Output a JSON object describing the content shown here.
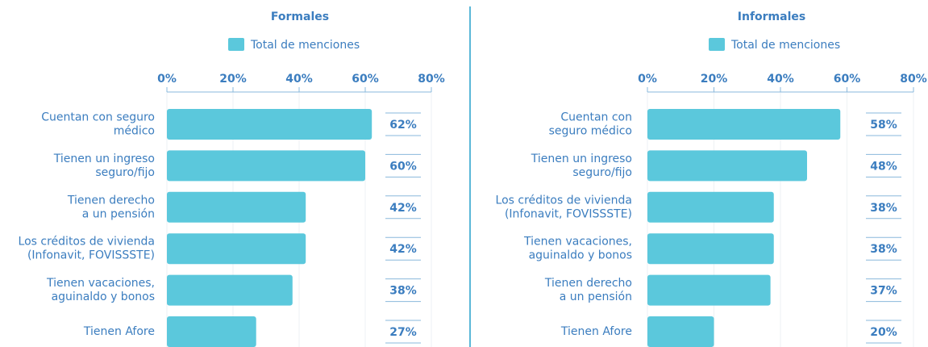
{
  "chart_data": [
    {
      "type": "bar",
      "orientation": "horizontal",
      "title": "Formales",
      "categories": [
        [
          "Cuentan con seguro",
          "médico"
        ],
        [
          "Tienen un ingreso",
          "seguro/fijo"
        ],
        [
          "Tienen derecho",
          "a un pensión"
        ],
        [
          "Los créditos de vivienda",
          "(Infonavit, FOVISSSTE)"
        ],
        [
          "Tienen vacaciones,",
          "aguinaldo y bonos"
        ],
        [
          "Tienen Afore"
        ]
      ],
      "series": [
        {
          "name": "Total de menciones",
          "color": "#5bc8dc",
          "values": [
            62,
            60,
            42,
            42,
            38,
            27
          ],
          "value_labels": [
            "62%",
            "60%",
            "42%",
            "42%",
            "38%",
            "27%"
          ]
        }
      ],
      "xlim": [
        0,
        80
      ],
      "xticks": [
        {
          "value": 0,
          "label": "0%"
        },
        {
          "value": 20,
          "label": "20%"
        },
        {
          "value": 40,
          "label": "40%"
        },
        {
          "value": 60,
          "label": "60%"
        },
        {
          "value": 80,
          "label": "80%"
        }
      ],
      "grid": true
    },
    {
      "type": "bar",
      "orientation": "horizontal",
      "title": "Informales",
      "categories": [
        [
          "Cuentan con",
          "seguro médico"
        ],
        [
          "Tienen un ingreso",
          "seguro/fijo"
        ],
        [
          "Los créditos de vivienda",
          "(Infonavit, FOVISSSTE)"
        ],
        [
          "Tienen vacaciones,",
          "aguinaldo y bonos"
        ],
        [
          "Tienen derecho",
          "a un pensión"
        ],
        [
          "Tienen Afore"
        ]
      ],
      "series": [
        {
          "name": "Total de menciones",
          "color": "#5bc8dc",
          "values": [
            58,
            48,
            38,
            38,
            37,
            20
          ],
          "value_labels": [
            "58%",
            "48%",
            "38%",
            "38%",
            "37%",
            "20%"
          ]
        }
      ],
      "xlim": [
        0,
        80
      ],
      "xticks": [
        {
          "value": 0,
          "label": "0%"
        },
        {
          "value": 20,
          "label": "20%"
        },
        {
          "value": 40,
          "label": "40%"
        },
        {
          "value": 60,
          "label": "60%"
        },
        {
          "value": 80,
          "label": "80%"
        }
      ],
      "grid": true
    }
  ]
}
